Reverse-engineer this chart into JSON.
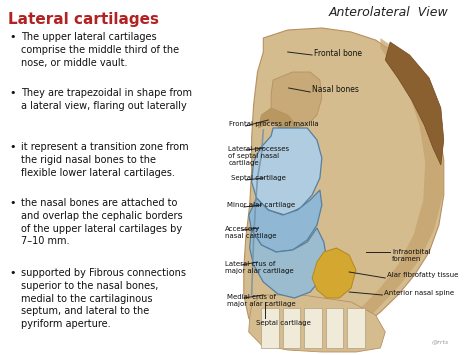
{
  "title": "Lateral cartilages",
  "title_color": "#b22222",
  "subtitle": "Anterolateral  View",
  "subtitle_color": "#222222",
  "background_color": "#ffffff",
  "bullet_points": [
    "The upper lateral cartilages\ncomprise the middle third of the\nnose, or middle vault.",
    "They are trapezoidal in shape from\na lateral view, flaring out laterally",
    "it represent a transition zone from\nthe rigid nasal bones to the\nflexible lower lateral cartilages.",
    "the nasal bones are attached to\nand overlap the cephalic borders\nof the upper lateral cartilages by\n7–10 mm.",
    "supported by Fibrous connections\nsuperior to the nasal bones,\nmedial to the cartilaginous\nseptum, and lateral to the\npyriform aperture."
  ],
  "bullet_color": "#111111",
  "bullet_fontsize": 7.0,
  "title_fontsize": 11,
  "subtitle_fontsize": 9,
  "skull_color": "#d4bc8e",
  "skull_shadow": "#b89060",
  "skull_dark": "#c8a870",
  "cartilage_blue": "#b0cce0",
  "cartilage_blue2": "#90b8d4",
  "cartilage_edge": "#5580a0",
  "bone_dark": "#a07840",
  "yellow_tissue": "#d4a830"
}
